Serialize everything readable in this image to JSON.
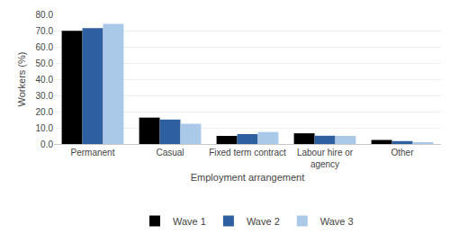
{
  "chart_data": {
    "type": "bar",
    "categories": [
      "Permanent",
      "Casual",
      "Fixed term contract",
      "Labour hire or\nagency",
      "Other"
    ],
    "series": [
      {
        "name": "Wave 1",
        "color": "#000000",
        "values": [
          69.9,
          16.3,
          5.0,
          6.6,
          2.5
        ]
      },
      {
        "name": "Wave 2",
        "color": "#2e5f9e",
        "values": [
          71.5,
          15.1,
          6.1,
          5.1,
          1.8
        ]
      },
      {
        "name": "Wave 3",
        "color": "#aac9e8",
        "values": [
          74.1,
          12.5,
          7.4,
          5.0,
          1.1
        ]
      }
    ],
    "xlabel": "Employment arrangement",
    "ylabel": "Workers (%)",
    "ylim": [
      0,
      80
    ],
    "yticks": [
      {
        "value": 0,
        "label": "0.0"
      },
      {
        "value": 10,
        "label": "10.0"
      },
      {
        "value": 20,
        "label": "20.0"
      },
      {
        "value": 30,
        "label": "30.0"
      },
      {
        "value": 40,
        "label": "40.0"
      },
      {
        "value": 50,
        "label": "50.0"
      },
      {
        "value": 60,
        "label": "60.0"
      },
      {
        "value": 70,
        "label": "70.0"
      },
      {
        "value": 80,
        "label": "80.0"
      }
    ],
    "grid": true,
    "legend": "bottom"
  }
}
